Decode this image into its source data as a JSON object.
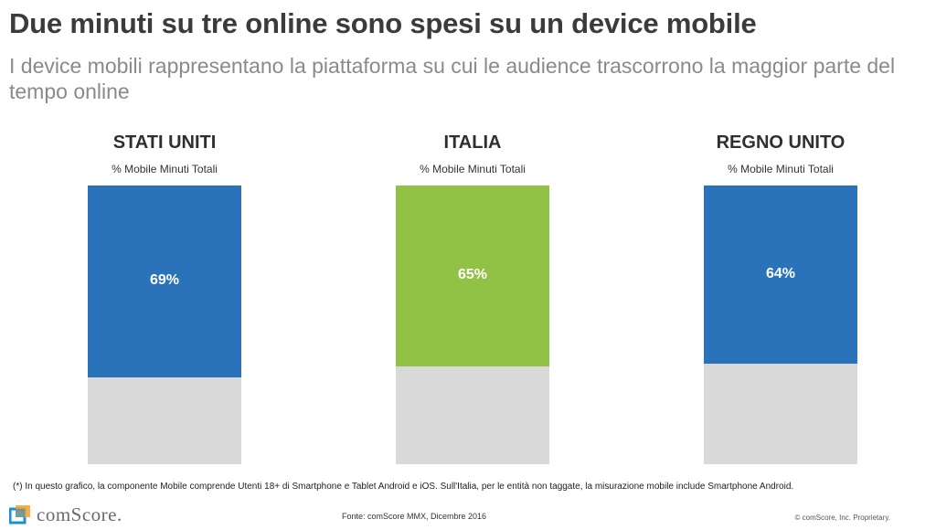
{
  "title": "Due minuti su tre online sono spesi su un device mobile",
  "subtitle": "I device mobili rappresentano la piattaforma su cui le audience trascorrono la maggior parte del tempo online",
  "chart_data": [
    {
      "type": "bar",
      "title": "STATI UNITI",
      "subtitle": "% Mobile Minuti Totali",
      "categories": [
        "Mobile"
      ],
      "values": [
        69
      ],
      "value_label": "69%",
      "ylim": [
        0,
        100
      ],
      "color": "#2a73ba",
      "remainder_color": "#d9d9d9"
    },
    {
      "type": "bar",
      "title": "ITALIA",
      "subtitle": "% Mobile Minuti Totali",
      "categories": [
        "Mobile"
      ],
      "values": [
        65
      ],
      "value_label": "65%",
      "ylim": [
        0,
        100
      ],
      "color": "#92c245",
      "remainder_color": "#d9d9d9"
    },
    {
      "type": "bar",
      "title": "REGNO UNITO",
      "subtitle": "% Mobile Minuti Totali",
      "categories": [
        "Mobile"
      ],
      "values": [
        64
      ],
      "value_label": "64%",
      "ylim": [
        0,
        100
      ],
      "color": "#2a73ba",
      "remainder_color": "#d9d9d9"
    }
  ],
  "footnote": "(*) In questo grafico, la componente Mobile comprende Utenti 18+ di Smartphone e Tablet Android e iOS. Sull'Italia, per le entità non taggate, la misurazione mobile include Smartphone Android.",
  "logo_text": "comScore.",
  "source": "Fonte: comScore MMX, Dicembre 2016",
  "copyright": "© comScore, Inc. Proprietary."
}
